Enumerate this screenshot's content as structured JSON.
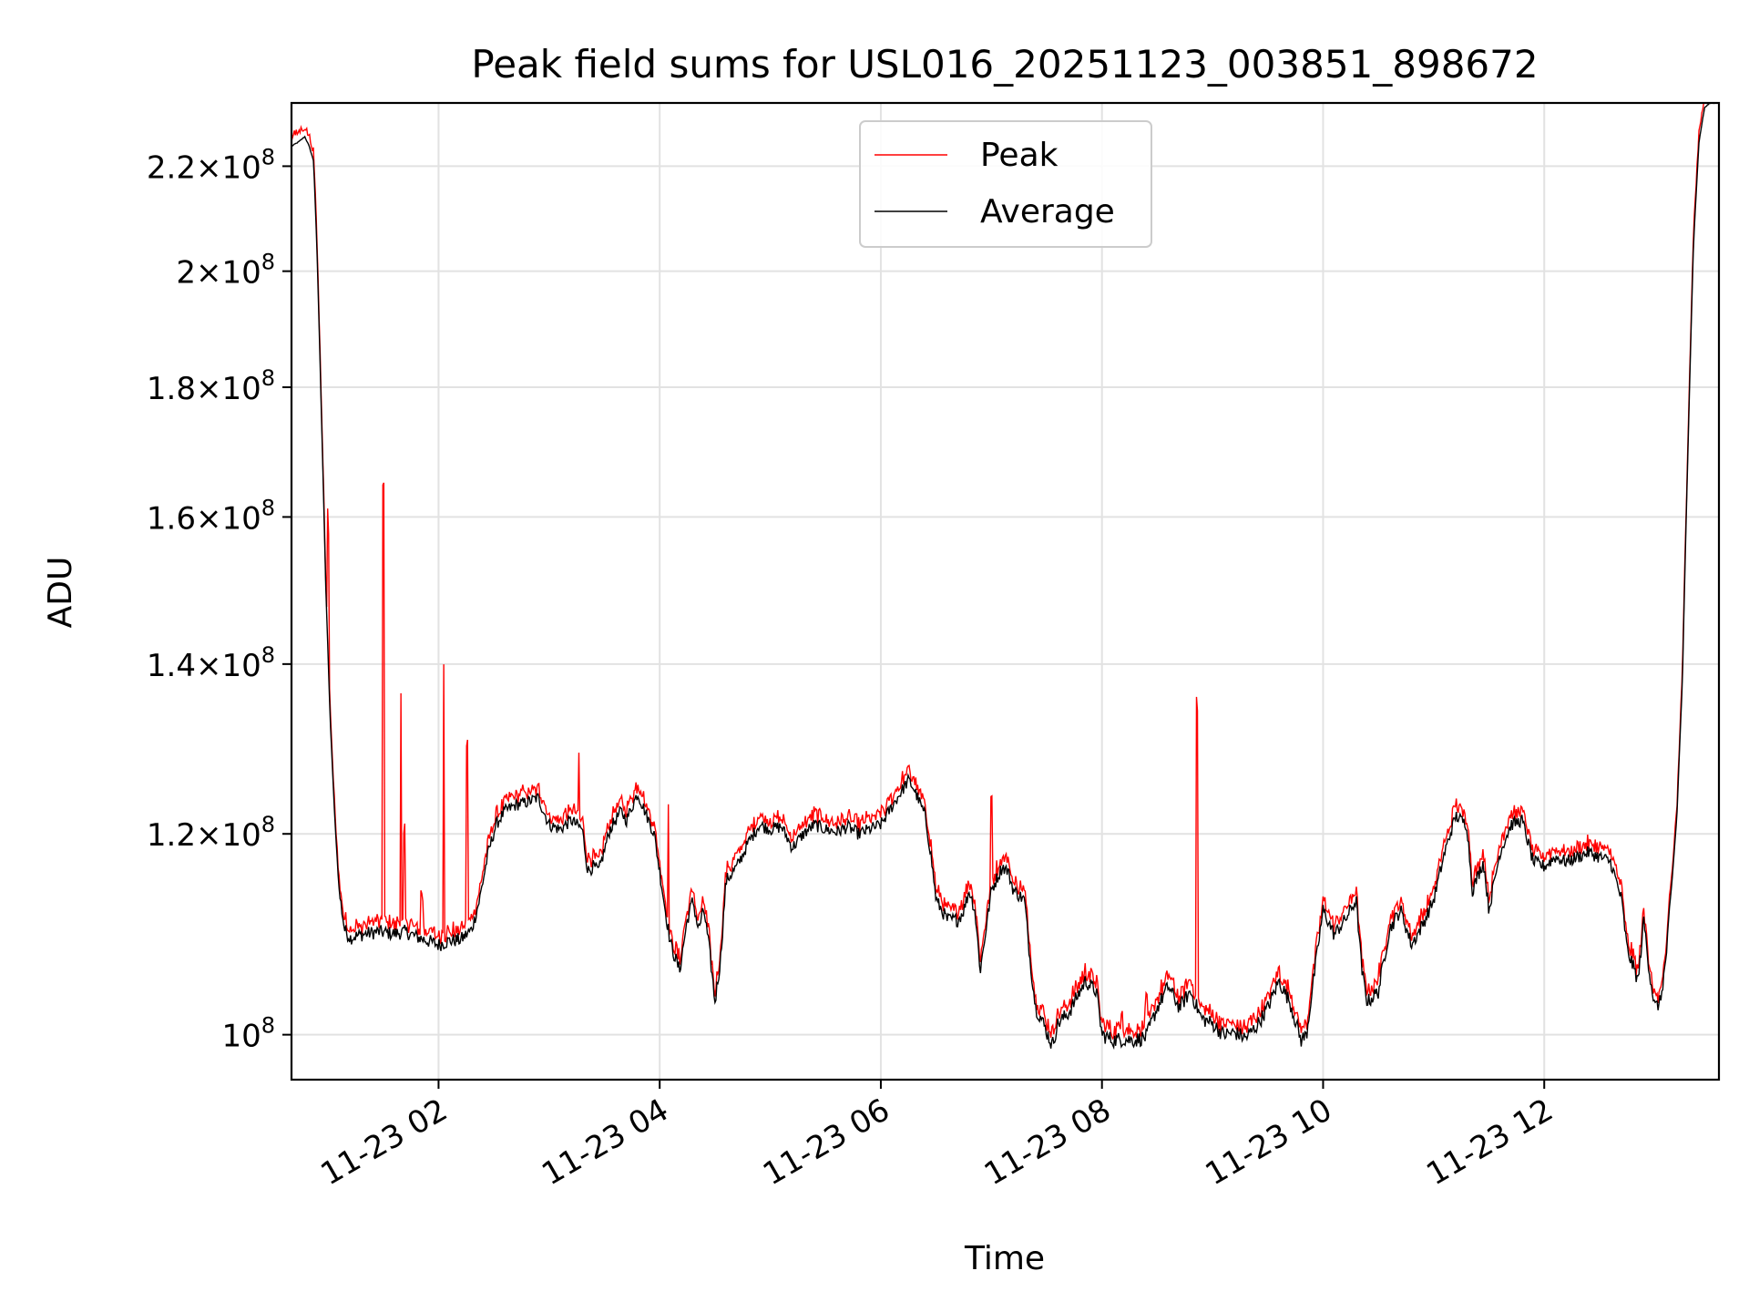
{
  "chart_data": {
    "type": "line",
    "scale": "log",
    "title": "Peak field sums for USL016_20251123_003851_898672",
    "xlabel": "Time",
    "ylabel": "ADU",
    "xlim_hours": [
      0.67,
      13.58
    ],
    "ylim": [
      96000000,
      233000000
    ],
    "grid": true,
    "legend_position": "upper center",
    "x_ticks": [
      {
        "hour": 2,
        "label": "11-23 02"
      },
      {
        "hour": 4,
        "label": "11-23 04"
      },
      {
        "hour": 6,
        "label": "11-23 06"
      },
      {
        "hour": 8,
        "label": "11-23 08"
      },
      {
        "hour": 10,
        "label": "11-23 10"
      },
      {
        "hour": 12,
        "label": "11-23 12"
      }
    ],
    "y_ticks": [
      {
        "value": 100000000,
        "mant": "",
        "exp": "8"
      },
      {
        "value": 120000000,
        "mant": "1.2",
        "exp": "8"
      },
      {
        "value": 140000000,
        "mant": "1.4",
        "exp": "8"
      },
      {
        "value": 160000000,
        "mant": "1.6",
        "exp": "8"
      },
      {
        "value": 180000000,
        "mant": "1.8",
        "exp": "8"
      },
      {
        "value": 200000000,
        "mant": "2",
        "exp": "8"
      },
      {
        "value": 220000000,
        "mant": "2.2",
        "exp": "8"
      }
    ],
    "series": [
      {
        "name": "Peak",
        "color": "#ff0000",
        "spikes": [
          [
            0.65,
            0.8,
            3.0
          ],
          [
            1.0,
            17.6,
            1.5
          ],
          [
            1.5,
            54.5,
            1.0
          ],
          [
            1.66,
            26.0,
            1.0
          ],
          [
            1.69,
            9.3,
            1.2
          ],
          [
            1.85,
            3.4,
            2.5
          ],
          [
            2.05,
            31.0,
            1.0
          ],
          [
            2.26,
            19.7,
            1.3
          ],
          [
            3.27,
            7.0,
            1.0
          ],
          [
            4.08,
            11.5,
            1.0
          ],
          [
            7.0,
            9.0,
            1.2
          ],
          [
            8.18,
            2.2,
            2.0
          ],
          [
            8.4,
            2.2,
            2.0
          ],
          [
            8.86,
            31.4,
            1.0
          ],
          [
            10.5,
            1.1,
            1.5
          ]
        ],
        "offset_pct": 0.9
      },
      {
        "name": "Average",
        "color": "#000000",
        "points": [
          [
            0.67,
            224
          ],
          [
            0.74,
            225
          ],
          [
            0.79,
            226
          ],
          [
            0.83,
            224
          ],
          [
            0.87,
            221
          ],
          [
            0.9,
            204
          ],
          [
            0.94,
            176
          ],
          [
            0.98,
            150
          ],
          [
            1.02,
            133
          ],
          [
            1.06,
            122
          ],
          [
            1.1,
            114
          ],
          [
            1.15,
            110
          ],
          [
            1.2,
            109.2
          ],
          [
            1.3,
            109.5
          ],
          [
            1.45,
            109.8
          ],
          [
            1.6,
            109.6
          ],
          [
            1.7,
            109.8
          ],
          [
            1.8,
            109.3
          ],
          [
            1.9,
            108.9
          ],
          [
            2.0,
            108.5
          ],
          [
            2.1,
            108.9
          ],
          [
            2.2,
            109.0
          ],
          [
            2.3,
            110
          ],
          [
            2.37,
            113
          ],
          [
            2.45,
            118
          ],
          [
            2.52,
            121
          ],
          [
            2.6,
            122.5
          ],
          [
            2.7,
            123.2
          ],
          [
            2.8,
            123.5
          ],
          [
            2.9,
            124
          ],
          [
            3.0,
            121
          ],
          [
            3.1,
            120.5
          ],
          [
            3.2,
            121.5
          ],
          [
            3.3,
            120.5
          ],
          [
            3.35,
            116
          ],
          [
            3.4,
            116.5
          ],
          [
            3.45,
            116
          ],
          [
            3.55,
            120.5
          ],
          [
            3.65,
            122.5
          ],
          [
            3.7,
            121.5
          ],
          [
            3.8,
            124.5
          ],
          [
            3.85,
            123
          ],
          [
            3.95,
            120
          ],
          [
            4.0,
            116
          ],
          [
            4.05,
            112
          ],
          [
            4.1,
            108.5
          ],
          [
            4.18,
            106
          ],
          [
            4.25,
            111
          ],
          [
            4.3,
            113
          ],
          [
            4.35,
            110
          ],
          [
            4.4,
            112
          ],
          [
            4.45,
            108
          ],
          [
            4.5,
            103
          ],
          [
            4.55,
            107
          ],
          [
            4.6,
            115
          ],
          [
            4.7,
            116.5
          ],
          [
            4.8,
            119
          ],
          [
            4.9,
            121
          ],
          [
            5.0,
            120.5
          ],
          [
            5.1,
            120.8
          ],
          [
            5.2,
            118.5
          ],
          [
            5.3,
            120
          ],
          [
            5.4,
            121
          ],
          [
            5.5,
            120.5
          ],
          [
            5.6,
            120.2
          ],
          [
            5.7,
            120.8
          ],
          [
            5.8,
            120
          ],
          [
            5.9,
            120.5
          ],
          [
            6.0,
            121
          ],
          [
            6.1,
            123
          ],
          [
            6.2,
            125
          ],
          [
            6.25,
            126
          ],
          [
            6.3,
            125
          ],
          [
            6.4,
            122
          ],
          [
            6.45,
            118
          ],
          [
            6.5,
            113
          ],
          [
            6.6,
            111
          ],
          [
            6.7,
            111
          ],
          [
            6.75,
            112
          ],
          [
            6.8,
            114
          ],
          [
            6.85,
            112
          ],
          [
            6.9,
            106
          ],
          [
            6.95,
            110
          ],
          [
            7.0,
            114
          ],
          [
            7.1,
            116.5
          ],
          [
            7.15,
            116
          ],
          [
            7.2,
            114
          ],
          [
            7.3,
            113
          ],
          [
            7.35,
            107
          ],
          [
            7.4,
            102.5
          ],
          [
            7.45,
            101.5
          ],
          [
            7.55,
            99
          ],
          [
            7.6,
            101
          ],
          [
            7.7,
            102
          ],
          [
            7.8,
            104
          ],
          [
            7.85,
            105
          ],
          [
            7.95,
            104
          ],
          [
            8.0,
            100
          ],
          [
            8.1,
            99.5
          ],
          [
            8.2,
            99.6
          ],
          [
            8.3,
            99.5
          ],
          [
            8.4,
            99.8
          ],
          [
            8.5,
            102.5
          ],
          [
            8.6,
            104.5
          ],
          [
            8.7,
            102.5
          ],
          [
            8.8,
            104
          ],
          [
            8.9,
            101.5
          ],
          [
            9.0,
            101
          ],
          [
            9.1,
            100
          ],
          [
            9.2,
            100.2
          ],
          [
            9.3,
            99.7
          ],
          [
            9.4,
            100.8
          ],
          [
            9.5,
            102.5
          ],
          [
            9.6,
            105
          ],
          [
            9.7,
            103
          ],
          [
            9.8,
            99.5
          ],
          [
            9.85,
            100
          ],
          [
            9.9,
            104
          ],
          [
            10.0,
            112
          ],
          [
            10.1,
            109.5
          ],
          [
            10.2,
            111
          ],
          [
            10.3,
            113
          ],
          [
            10.35,
            106
          ],
          [
            10.4,
            103
          ],
          [
            10.5,
            104
          ],
          [
            10.6,
            110
          ],
          [
            10.7,
            112
          ],
          [
            10.8,
            108.5
          ],
          [
            10.9,
            110.5
          ],
          [
            11.0,
            113
          ],
          [
            11.1,
            118
          ],
          [
            11.2,
            122
          ],
          [
            11.3,
            121
          ],
          [
            11.35,
            114
          ],
          [
            11.45,
            117
          ],
          [
            11.5,
            112
          ],
          [
            11.6,
            118
          ],
          [
            11.7,
            121
          ],
          [
            11.8,
            121.5
          ],
          [
            11.9,
            117
          ],
          [
            12.0,
            116.5
          ],
          [
            12.1,
            117.5
          ],
          [
            12.2,
            117
          ],
          [
            12.3,
            117.5
          ],
          [
            12.4,
            118
          ],
          [
            12.5,
            117.5
          ],
          [
            12.6,
            117
          ],
          [
            12.7,
            113
          ],
          [
            12.75,
            108
          ],
          [
            12.85,
            105
          ],
          [
            12.9,
            111
          ],
          [
            12.95,
            106
          ],
          [
            13.0,
            102.5
          ],
          [
            13.05,
            103
          ],
          [
            13.1,
            107
          ],
          [
            13.15,
            114
          ],
          [
            13.2,
            122
          ],
          [
            13.25,
            138
          ],
          [
            13.3,
            170
          ],
          [
            13.35,
            205
          ],
          [
            13.4,
            225
          ],
          [
            13.45,
            232
          ],
          [
            13.5,
            233
          ],
          [
            13.58,
            233
          ]
        ],
        "values_unit": "1e6 ADU"
      }
    ]
  }
}
